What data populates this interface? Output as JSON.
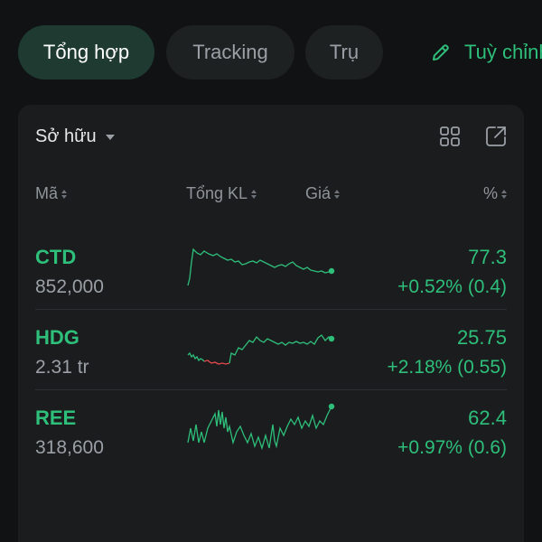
{
  "tabs": [
    {
      "label": "Tổng hợp",
      "active": true
    },
    {
      "label": "Tracking",
      "active": false
    },
    {
      "label": "Trụ",
      "active": false
    }
  ],
  "customize_label": "Tuỳ chỉnh",
  "card": {
    "filter_label": "Sở hữu",
    "headers": {
      "code": "Mã",
      "volume": "Tổng KL",
      "price": "Giá",
      "percent": "%"
    }
  },
  "rows": [
    {
      "symbol": "CTD",
      "volume": "852,000",
      "price": "77.3",
      "change": "+0.52% (0.4)"
    },
    {
      "symbol": "HDG",
      "volume": "2.31 tr",
      "price": "25.75",
      "change": "+2.18% (0.55)"
    },
    {
      "symbol": "REE",
      "volume": "318,600",
      "price": "62.4",
      "change": "+0.97% (0.6)"
    }
  ],
  "colors": {
    "up": "#2ebf7a",
    "down": "#e5484d",
    "accent": "#2ebf7a"
  }
}
